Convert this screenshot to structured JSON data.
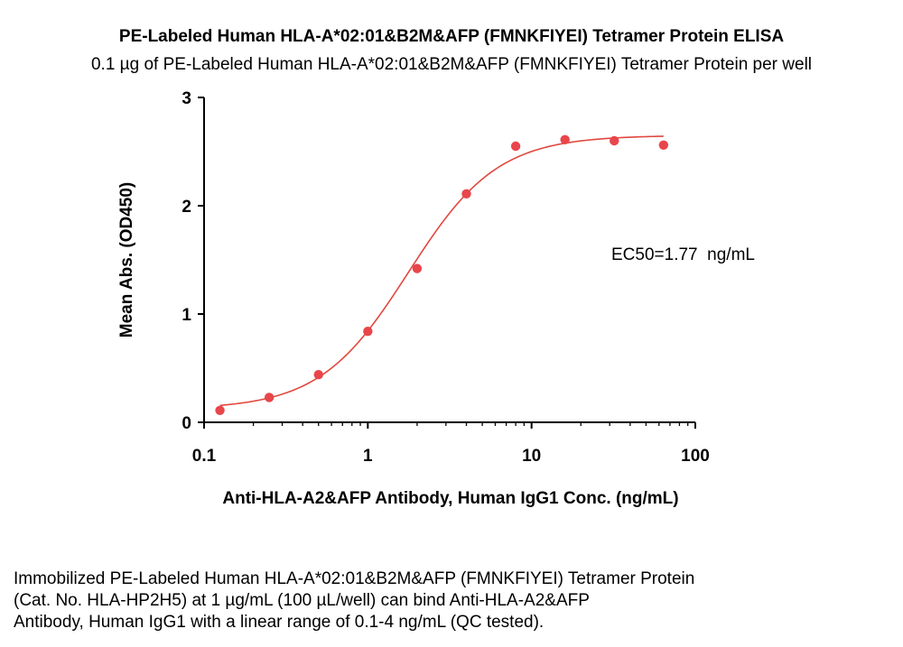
{
  "title": "PE-Labeled Human HLA-A*02:01&B2M&AFP (FMNKFIYEI) Tetramer Protein ELISA",
  "subtitle": "0.1 µg of PE-Labeled Human HLA-A*02:01&B2M&AFP (FMNKFIYEI) Tetramer Protein per well",
  "caption_lines": [
    "Immobilized PE-Labeled Human HLA-A*02:01&B2M&AFP (FMNKFIYEI) Tetramer Protein",
    "(Cat. No. HLA-HP2H5) at 1 µg/mL (100 µL/well) can bind Anti-HLA-A2&AFP",
    "Antibody, Human IgG1 with a linear range of 0.1-4 ng/mL (QC tested)."
  ],
  "chart_data": {
    "type": "scatter",
    "xlabel": "Anti-HLA-A2&AFP Antibody, Human IgG1 Conc. (ng/mL)",
    "ylabel": "Mean Abs. (OD450)",
    "x_scale": "log",
    "xlim": [
      0.1,
      100
    ],
    "ylim": [
      0,
      3
    ],
    "x_ticks": [
      0.1,
      1,
      10,
      100
    ],
    "x_tick_labels": [
      "0.1",
      "1",
      "10",
      "100"
    ],
    "y_ticks": [
      0,
      1,
      2,
      3
    ],
    "y_tick_labels": [
      "0",
      "1",
      "2",
      "3"
    ],
    "grid": false,
    "annotation": "EC50=1.77  ng/mL",
    "colors": {
      "points": "#e8464b",
      "fit": "#e0483f",
      "axis": "#000000"
    },
    "points": {
      "x": [
        0.125,
        0.25,
        0.5,
        1,
        2,
        4,
        8,
        16,
        32,
        64
      ],
      "y": [
        0.11,
        0.23,
        0.44,
        0.84,
        1.42,
        2.11,
        2.55,
        2.61,
        2.6,
        2.56
      ]
    },
    "fit": {
      "model": "4PL",
      "bottom": 0.12,
      "top": 2.65,
      "ec50": 1.77,
      "hill": 1.6
    }
  }
}
